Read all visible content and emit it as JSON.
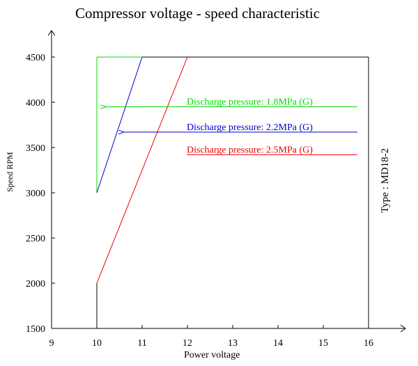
{
  "chart_data": {
    "type": "line",
    "title": "Compressor voltage - speed characteristic",
    "xlabel": "Power voltage",
    "ylabel": "Speed RPM",
    "type_label": "Type : MD18-2",
    "xlim": [
      9,
      16
    ],
    "ylim": [
      1500,
      4500
    ],
    "xticks": [
      "9",
      "10",
      "11",
      "12",
      "13",
      "14",
      "15",
      "16"
    ],
    "yticks": [
      "1500",
      "2000",
      "2500",
      "3000",
      "3500",
      "4000",
      "4500"
    ],
    "series": [
      {
        "name": "Discharge pressure: 1.8MPa (G)",
        "color": "#00dd00",
        "x": [
          10,
          10
        ],
        "y": [
          3000,
          4500
        ]
      },
      {
        "name": "Discharge pressure: 2.2MPa (G)",
        "color": "#0000cc",
        "x": [
          10,
          11
        ],
        "y": [
          3000,
          4500
        ]
      },
      {
        "name": "Discharge pressure: 2.5MPa (G)",
        "color": "#ee0000",
        "x": [
          10,
          12
        ],
        "y": [
          2000,
          4500
        ]
      }
    ],
    "annotations": [
      {
        "text": "Discharge pressure: 1.8MPa (G)",
        "color": "#00dd00",
        "y": 3950,
        "arrow_to_x": 10.2
      },
      {
        "text": "Discharge pressure: 2.2MPa (G)",
        "color": "#0000cc",
        "y": 3670,
        "arrow_to_x": 10.6
      },
      {
        "text": "Discharge pressure: 2.5MPa (G)",
        "color": "#ee0000",
        "y": 3420,
        "arrow_to_x": null
      }
    ],
    "grid": false,
    "legend": "annotations inside plot"
  }
}
